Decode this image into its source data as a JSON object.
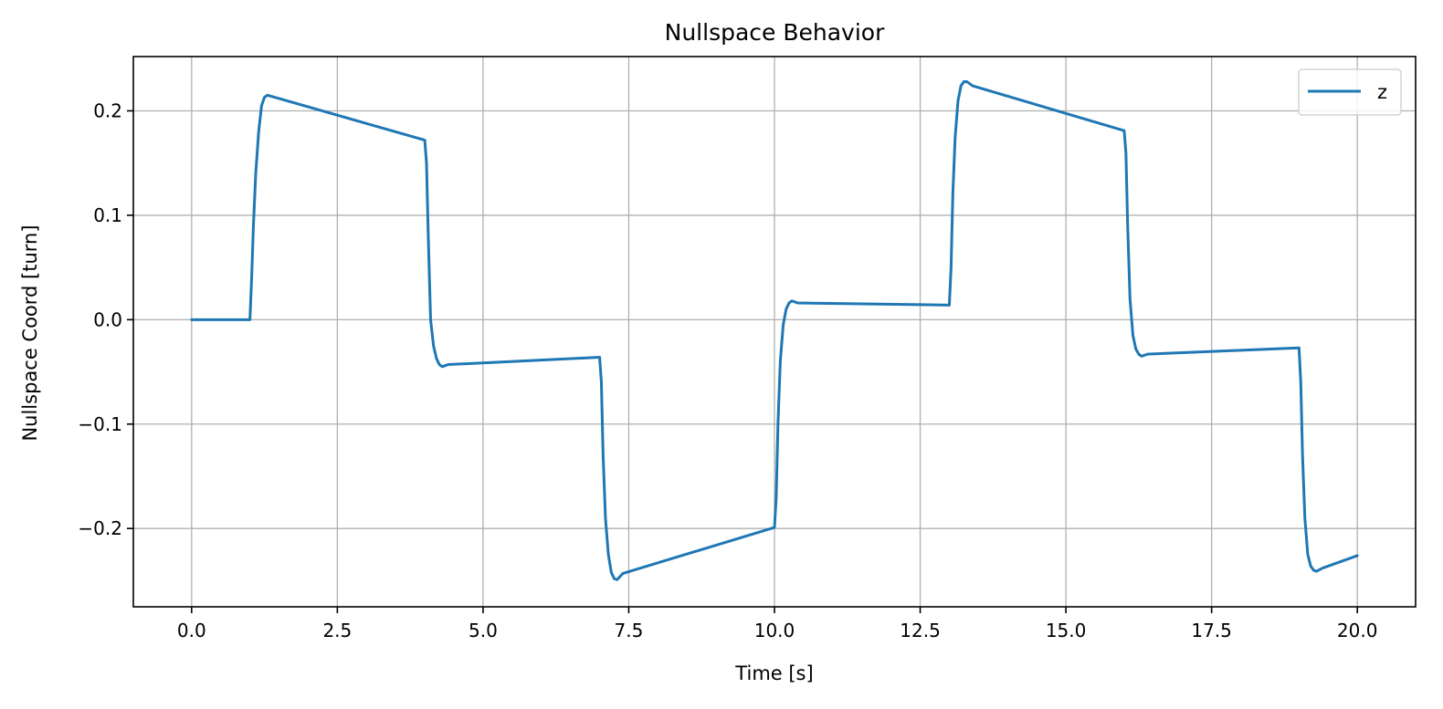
{
  "chart_data": {
    "type": "line",
    "title": "Nullspace Behavior",
    "xlabel": "Time [s]",
    "ylabel": "Nullspace Coord [turn]",
    "xlim": [
      -1.0,
      21.0
    ],
    "ylim": [
      -0.275,
      0.252
    ],
    "xticks": [
      0.0,
      2.5,
      5.0,
      7.5,
      10.0,
      12.5,
      15.0,
      17.5,
      20.0
    ],
    "xtick_labels": [
      "0.0",
      "2.5",
      "5.0",
      "7.5",
      "10.0",
      "12.5",
      "15.0",
      "17.5",
      "20.0"
    ],
    "yticks": [
      -0.2,
      -0.1,
      0.0,
      0.1,
      0.2
    ],
    "ytick_labels": [
      "−0.2",
      "−0.1",
      "0.0",
      "0.1",
      "0.2"
    ],
    "grid": true,
    "legend_position": "top-right",
    "series": [
      {
        "name": "z",
        "color": "#1f77b4",
        "x": [
          0.0,
          1.0,
          1.03,
          1.06,
          1.1,
          1.15,
          1.2,
          1.25,
          1.3,
          4.0,
          4.03,
          4.06,
          4.1,
          4.15,
          4.2,
          4.25,
          4.3,
          4.4,
          7.0,
          7.03,
          7.06,
          7.1,
          7.15,
          7.2,
          7.25,
          7.3,
          7.4,
          10.0,
          10.03,
          10.06,
          10.1,
          10.15,
          10.2,
          10.25,
          10.3,
          10.4,
          13.0,
          13.03,
          13.06,
          13.1,
          13.15,
          13.2,
          13.25,
          13.3,
          13.4,
          16.0,
          16.03,
          16.06,
          16.1,
          16.15,
          16.2,
          16.25,
          16.3,
          16.4,
          19.0,
          19.03,
          19.06,
          19.1,
          19.15,
          19.2,
          19.25,
          19.3,
          19.4,
          20.0
        ],
        "y": [
          0.0,
          0.0,
          0.04,
          0.09,
          0.14,
          0.18,
          0.205,
          0.213,
          0.215,
          0.172,
          0.15,
          0.08,
          0.0,
          -0.025,
          -0.037,
          -0.043,
          -0.045,
          -0.043,
          -0.036,
          -0.06,
          -0.13,
          -0.19,
          -0.225,
          -0.242,
          -0.248,
          -0.249,
          -0.243,
          -0.199,
          -0.17,
          -0.1,
          -0.04,
          -0.005,
          0.01,
          0.016,
          0.018,
          0.016,
          0.014,
          0.05,
          0.12,
          0.175,
          0.21,
          0.224,
          0.228,
          0.228,
          0.224,
          0.181,
          0.16,
          0.09,
          0.02,
          -0.015,
          -0.028,
          -0.033,
          -0.035,
          -0.033,
          -0.027,
          -0.06,
          -0.13,
          -0.19,
          -0.225,
          -0.236,
          -0.24,
          -0.241,
          -0.238,
          -0.226
        ]
      }
    ]
  }
}
